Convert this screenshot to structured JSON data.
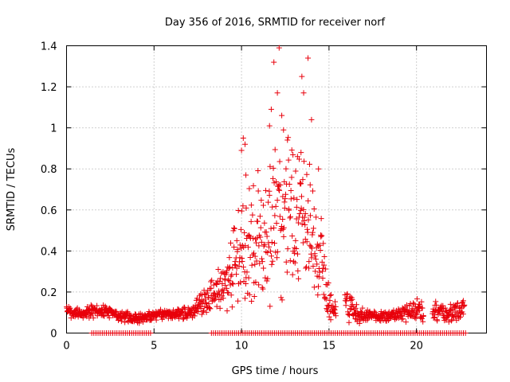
{
  "chart_data": {
    "type": "scatter",
    "title": "Day 356 of 2016, SRMTID for receiver norf",
    "xlabel": "GPS time / hours",
    "ylabel": "SRMTID / TECUs",
    "xlim": [
      0,
      24
    ],
    "ylim": [
      0,
      1.4
    ],
    "xticks": [
      "0",
      "5",
      "10",
      "15",
      "20"
    ],
    "yticks": [
      "0",
      "0.2",
      "0.4",
      "0.6",
      "0.8",
      "1",
      "1.2",
      "1.4"
    ],
    "grid": true,
    "marker": "+",
    "series": [
      {
        "name": "SRMTID",
        "color": "#e8000b",
        "anchors_x": [
          0,
          1,
          2,
          3,
          4,
          5,
          6,
          7,
          7.5,
          8,
          8.5,
          9,
          9.5,
          10,
          10.5,
          11,
          11.5,
          12,
          12.5,
          13,
          13.5,
          14,
          14.5,
          15,
          15.5,
          16,
          16.5,
          17,
          17.5,
          18,
          18.5,
          19,
          19.5,
          20,
          21,
          22,
          22.7
        ],
        "anchors_center": [
          0.1,
          0.1,
          0.11,
          0.08,
          0.07,
          0.09,
          0.09,
          0.1,
          0.13,
          0.17,
          0.2,
          0.24,
          0.3,
          0.4,
          0.45,
          0.45,
          0.5,
          0.55,
          0.58,
          0.6,
          0.58,
          0.52,
          0.4,
          0.15,
          0.08,
          0.15,
          0.1,
          0.08,
          0.08,
          0.08,
          0.08,
          0.09,
          0.1,
          0.11,
          0.11,
          0.1,
          0.12
        ],
        "anchors_spread": [
          0.03,
          0.03,
          0.04,
          0.03,
          0.03,
          0.03,
          0.03,
          0.04,
          0.06,
          0.08,
          0.1,
          0.14,
          0.22,
          0.3,
          0.33,
          0.35,
          0.4,
          0.45,
          0.45,
          0.45,
          0.4,
          0.38,
          0.28,
          0.1,
          0.05,
          0.12,
          0.06,
          0.04,
          0.03,
          0.03,
          0.03,
          0.04,
          0.06,
          0.06,
          0.06,
          0.05,
          0.05
        ],
        "outliers": [
          {
            "x": 12.15,
            "y": 1.39
          },
          {
            "x": 11.85,
            "y": 1.32
          },
          {
            "x": 13.8,
            "y": 1.34
          },
          {
            "x": 13.45,
            "y": 1.25
          },
          {
            "x": 12.05,
            "y": 1.17
          },
          {
            "x": 13.55,
            "y": 1.17
          },
          {
            "x": 11.7,
            "y": 1.09
          },
          {
            "x": 12.3,
            "y": 1.06
          },
          {
            "x": 14.0,
            "y": 1.04
          },
          {
            "x": 10.1,
            "y": 0.95
          },
          {
            "x": 10.2,
            "y": 0.92
          },
          {
            "x": 10.0,
            "y": 0.89
          },
          {
            "x": 11.6,
            "y": 1.01
          },
          {
            "x": 12.4,
            "y": 0.99
          },
          {
            "x": 13.2,
            "y": 0.86
          },
          {
            "x": 13.4,
            "y": 0.88
          },
          {
            "x": 10.25,
            "y": 0.77
          },
          {
            "x": 14.4,
            "y": 0.8
          }
        ],
        "zero_band_x": [
          [
            1.4,
            4.9
          ],
          [
            8.2,
            22.9
          ]
        ]
      }
    ]
  }
}
